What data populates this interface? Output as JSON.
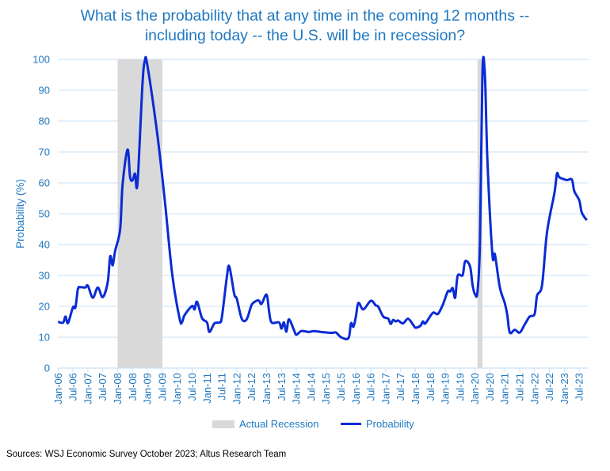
{
  "chart_data": {
    "type": "line",
    "title": "What is the probability that at any time in the coming 12 months -- including today -- the U.S. will be in recession?",
    "title_lines": [
      "What is the probability that at any time in the coming 12 months --",
      "including today -- the U.S. will be in recession?"
    ],
    "xlabel": "",
    "ylabel": "Probability (%)",
    "ylim": [
      0,
      100
    ],
    "yticks": [
      0,
      10,
      20,
      30,
      40,
      50,
      60,
      70,
      80,
      90,
      100
    ],
    "xlim": [
      "2006-01",
      "2023-11"
    ],
    "xtick_labels": [
      "Jan-06",
      "Jul-06",
      "Jan-07",
      "Jul-07",
      "Jan-08",
      "Jul-08",
      "Jan-09",
      "Jul-09",
      "Jan-10",
      "Jul-10",
      "Jan-11",
      "Jul-11",
      "Jan-12",
      "Jul-12",
      "Jan-13",
      "Jul-13",
      "Jan-14",
      "Jul-14",
      "Jan-15",
      "Jul-15",
      "Jan-16",
      "Jul-16",
      "Jan-17",
      "Jul-17",
      "Jan-18",
      "Jul-18",
      "Jan-19",
      "Jul-19",
      "Jan-20",
      "Jul-20",
      "Jan-21",
      "Jul-21",
      "Jan-22",
      "Jul-22",
      "Jan-23",
      "Jul-23"
    ],
    "grid": true,
    "legend_position": "bottom",
    "recessions": {
      "name": "Actual Recession",
      "color": "#d9d9d9",
      "periods": [
        [
          "2008-01",
          "2009-07"
        ],
        [
          "2020-02",
          "2020-04"
        ]
      ]
    },
    "series": [
      {
        "name": "Probability",
        "color": "#0a2bd6",
        "x": [
          "2006-01",
          "2006-03",
          "2006-04",
          "2006-05",
          "2006-07",
          "2006-08",
          "2006-09",
          "2006-10",
          "2006-12",
          "2007-01",
          "2007-03",
          "2007-05",
          "2007-07",
          "2007-09",
          "2007-10",
          "2007-11",
          "2007-12",
          "2008-02",
          "2008-03",
          "2008-05",
          "2008-06",
          "2008-07",
          "2008-08",
          "2008-09",
          "2008-11",
          "2008-12",
          "2009-01",
          "2009-05",
          "2009-08",
          "2009-11",
          "2010-02",
          "2010-03",
          "2010-04",
          "2010-07",
          "2010-08",
          "2010-09",
          "2010-11",
          "2011-01",
          "2011-02",
          "2011-04",
          "2011-06",
          "2011-07",
          "2011-09",
          "2011-10",
          "2011-12",
          "2012-01",
          "2012-03",
          "2012-05",
          "2012-07",
          "2012-09",
          "2012-10",
          "2012-11",
          "2013-01",
          "2013-02",
          "2013-03",
          "2013-06",
          "2013-07",
          "2013-08",
          "2013-09",
          "2013-10",
          "2013-12",
          "2014-01",
          "2014-03",
          "2014-06",
          "2014-08",
          "2014-11",
          "2015-03",
          "2015-05",
          "2015-07",
          "2015-10",
          "2015-11",
          "2015-12",
          "2016-01",
          "2016-02",
          "2016-04",
          "2016-07",
          "2016-09",
          "2016-10",
          "2016-12",
          "2017-02",
          "2017-03",
          "2017-04",
          "2017-05",
          "2017-06",
          "2017-08",
          "2017-10",
          "2017-12",
          "2018-01",
          "2018-03",
          "2018-04",
          "2018-05",
          "2018-08",
          "2018-10",
          "2018-12",
          "2019-02",
          "2019-03",
          "2019-04",
          "2019-05",
          "2019-06",
          "2019-08",
          "2019-09",
          "2019-11",
          "2019-12",
          "2020-01",
          "2020-02",
          "2020-03",
          "2020-04",
          "2020-05",
          "2020-06",
          "2020-08",
          "2020-09",
          "2020-11",
          "2021-01",
          "2021-02",
          "2021-03",
          "2021-05",
          "2021-07",
          "2021-09",
          "2021-11",
          "2022-01",
          "2022-02",
          "2022-04",
          "2022-06",
          "2022-09",
          "2022-10",
          "2022-11",
          "2023-02",
          "2023-04",
          "2023-05",
          "2023-07",
          "2023-08",
          "2023-10"
        ],
        "values": [
          15,
          14.7,
          16.7,
          14.6,
          19.7,
          19.7,
          25.6,
          26.2,
          26.1,
          26.7,
          22.8,
          26.1,
          23,
          27.8,
          36.2,
          33.3,
          38,
          44.9,
          59.5,
          70.8,
          62,
          60.8,
          63,
          59.8,
          91.9,
          99.7,
          98,
          75.6,
          54.3,
          30.3,
          15.9,
          15,
          17.2,
          20.1,
          19,
          21.5,
          16.2,
          14.8,
          11.7,
          14.5,
          14.8,
          16.5,
          29.5,
          32.9,
          23.9,
          22.5,
          16,
          15.8,
          20.5,
          21.8,
          21.8,
          20.8,
          23.8,
          18.5,
          14.8,
          14.8,
          12.8,
          14.8,
          11.8,
          15.8,
          12.4,
          10.8,
          12,
          11.7,
          12,
          11.7,
          11.4,
          11.5,
          10,
          9.7,
          14.5,
          13.4,
          16.7,
          21.1,
          19,
          21.8,
          20.3,
          19.9,
          16.7,
          16,
          14.3,
          15.6,
          15.1,
          15.4,
          14.5,
          16,
          14.1,
          13.1,
          13.7,
          15.1,
          14.5,
          17.9,
          17.5,
          20.5,
          24.8,
          24.8,
          25.9,
          22.8,
          29.9,
          30.1,
          34.6,
          32.9,
          26.9,
          23.9,
          24.8,
          41.5,
          96.2,
          94.4,
          67,
          36.8,
          36.8,
          26.1,
          21,
          17.1,
          11.5,
          12.4,
          11.5,
          14.1,
          16.7,
          17.5,
          23.5,
          26.9,
          44,
          56.8,
          63,
          61.8,
          60.9,
          61.1,
          57.3,
          54.3,
          50.4,
          47.9
        ]
      }
    ]
  },
  "legend": {
    "recession_label": "Actual Recession",
    "probability_label": "Probability"
  },
  "source": "Sources: WSJ Economic Survey October 2023; Altus Research Team",
  "colors": {
    "title": "#1f78c1",
    "axis_text": "#1f78c1",
    "grid": "#c9e2f5",
    "line": "#0a2bd6",
    "recession": "#d9d9d9"
  }
}
